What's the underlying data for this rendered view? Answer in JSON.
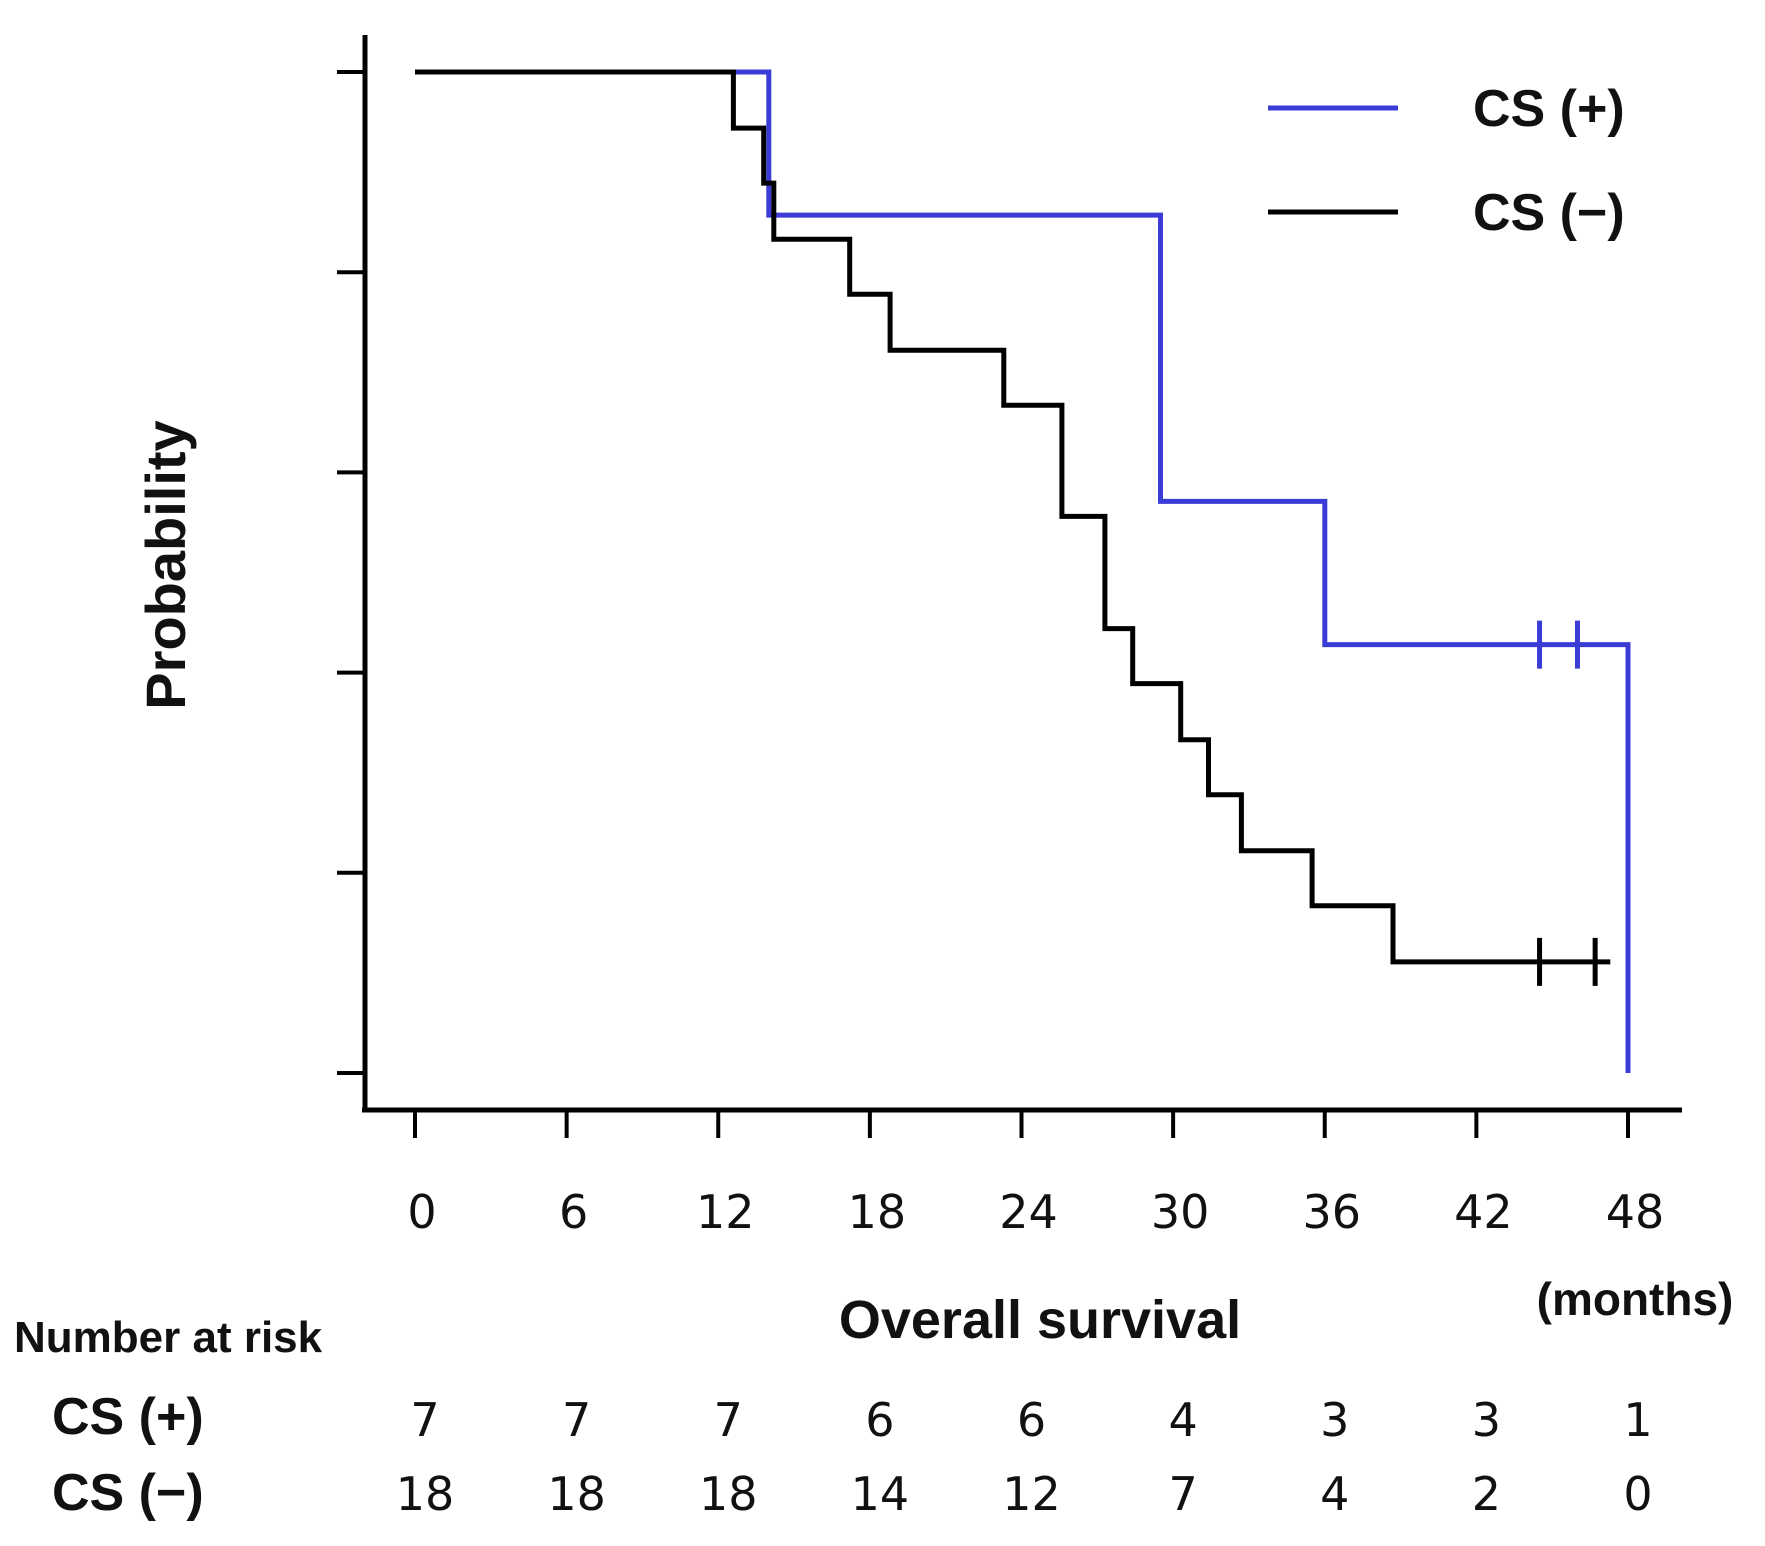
{
  "chart_data": {
    "type": "line",
    "step": true,
    "title": "",
    "ylabel": "Probability",
    "xlabel": "Overall survival",
    "x_unit_label": "(months)",
    "xlim": [
      0,
      48
    ],
    "ylim": [
      0,
      1
    ],
    "x_ticks": [
      0,
      6,
      12,
      18,
      24,
      30,
      36,
      42,
      48
    ],
    "x_tick_labels": [
      "0",
      "6",
      "12",
      "18",
      "24",
      "30",
      "36",
      "42",
      "48"
    ],
    "y_ticks": [
      0,
      0.2,
      0.4,
      0.6,
      0.8,
      1.0
    ],
    "y_tick_labels_shown": false,
    "legend_position": "top-right",
    "series": [
      {
        "name": "CS (+)",
        "color": "#3b3bd6",
        "points": [
          [
            0,
            1.0
          ],
          [
            14,
            1.0
          ],
          [
            14,
            0.857
          ],
          [
            29.5,
            0.857
          ],
          [
            29.5,
            0.571
          ],
          [
            36,
            0.571
          ],
          [
            36,
            0.428
          ],
          [
            48,
            0.428
          ],
          [
            48,
            0.0
          ]
        ],
        "censor_times": [
          44.5,
          46.0
        ],
        "censor_value": 0.428
      },
      {
        "name": "CS (−)",
        "color": "#000000",
        "points": [
          [
            0,
            1.0
          ],
          [
            12.6,
            1.0
          ],
          [
            12.6,
            0.944
          ],
          [
            13.8,
            0.944
          ],
          [
            13.8,
            0.889
          ],
          [
            14.2,
            0.889
          ],
          [
            14.2,
            0.833
          ],
          [
            17.2,
            0.833
          ],
          [
            17.2,
            0.778
          ],
          [
            18.8,
            0.778
          ],
          [
            18.8,
            0.722
          ],
          [
            23.3,
            0.722
          ],
          [
            23.3,
            0.667
          ],
          [
            25.6,
            0.667
          ],
          [
            25.6,
            0.556
          ],
          [
            27.3,
            0.556
          ],
          [
            27.3,
            0.444
          ],
          [
            28.4,
            0.444
          ],
          [
            28.4,
            0.389
          ],
          [
            30.3,
            0.389
          ],
          [
            30.3,
            0.333
          ],
          [
            31.4,
            0.333
          ],
          [
            31.4,
            0.278
          ],
          [
            32.7,
            0.278
          ],
          [
            32.7,
            0.222
          ],
          [
            35.5,
            0.222
          ],
          [
            35.5,
            0.167
          ],
          [
            38.7,
            0.167
          ],
          [
            38.7,
            0.111
          ],
          [
            47.3,
            0.111
          ]
        ],
        "censor_times": [
          44.5,
          46.7
        ],
        "censor_value": 0.111
      }
    ],
    "risk_table": {
      "title": "Number at risk",
      "rows": [
        {
          "label": "CS (+)",
          "values": [
            "7",
            "7",
            "7",
            "6",
            "6",
            "4",
            "3",
            "3",
            "1"
          ]
        },
        {
          "label": "CS (−)",
          "values": [
            "18",
            "18",
            "18",
            "14",
            "12",
            "7",
            "4",
            "2",
            "0"
          ]
        }
      ]
    }
  }
}
